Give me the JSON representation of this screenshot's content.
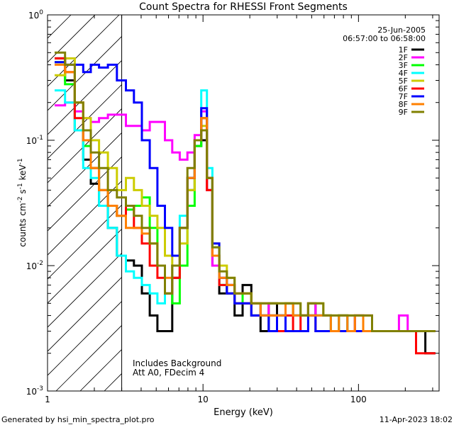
{
  "chart_data": {
    "type": "line",
    "title": "Count Spectra for RHESSI Front Segments",
    "xlabel": "Energy (keV)",
    "ylabel_base": "counts cm",
    "ylabel_sup1": "-2",
    "ylabel_mid": " s",
    "ylabel_sup2": "-1",
    "ylabel_end": " keV",
    "ylabel_sup3": "-1",
    "xscale": "log",
    "yscale": "log",
    "xlim": [
      1.0,
      330
    ],
    "ylim": [
      0.001,
      1.0
    ],
    "x_ticks": [
      {
        "value": 1,
        "label": "1"
      },
      {
        "value": 10,
        "label": "10"
      },
      {
        "value": 100,
        "label": "100"
      }
    ],
    "y_ticks": [
      {
        "value": 0.001,
        "base": "10",
        "exp": "-3"
      },
      {
        "value": 0.01,
        "base": "10",
        "exp": "-2"
      },
      {
        "value": 0.1,
        "base": "10",
        "exp": "-1"
      },
      {
        "value": 1.0,
        "base": "10",
        "exp": "0"
      }
    ],
    "hatch_region": {
      "x_min": 1.0,
      "x_max": 3.0
    },
    "date": "25-Jun-2005",
    "time_range": "06:57:00 to 06:58:00",
    "notes": [
      "Includes Background",
      "Att A0, FDecim 4"
    ],
    "energies": [
      1.2,
      1.4,
      1.6,
      1.8,
      2.0,
      2.3,
      2.6,
      3.0,
      3.4,
      3.8,
      4.3,
      4.8,
      5.4,
      6.0,
      6.7,
      7.5,
      8.4,
      9.3,
      10.2,
      11.0,
      12.0,
      13.5,
      15,
      17,
      19,
      22,
      25,
      28,
      32,
      36,
      40,
      45,
      50,
      56,
      63,
      70,
      80,
      90,
      100,
      115,
      130,
      150,
      170,
      195,
      220,
      250,
      290
    ],
    "series": [
      {
        "name": "1F",
        "color": "#000000",
        "values": [
          0.45,
          0.3,
          0.12,
          0.07,
          0.045,
          0.03,
          0.02,
          0.012,
          0.011,
          0.01,
          0.006,
          0.004,
          0.003,
          0.003,
          0.008,
          0.02,
          0.04,
          0.09,
          0.1,
          0.04,
          0.01,
          0.006,
          0.007,
          0.004,
          0.007,
          0.005,
          0.003,
          0.005,
          0.004,
          0.005,
          0.004,
          0.004,
          0.005,
          0.004,
          0.004,
          0.003,
          0.004,
          0.003,
          0.004,
          0.003,
          0.003,
          0.003,
          0.003,
          0.003,
          0.003,
          0.003,
          0.002
        ]
      },
      {
        "name": "2F",
        "color": "#ff00ff",
        "values": [
          0.19,
          0.2,
          0.17,
          0.15,
          0.14,
          0.15,
          0.16,
          0.16,
          0.13,
          0.13,
          0.12,
          0.14,
          0.14,
          0.1,
          0.08,
          0.07,
          0.08,
          0.11,
          0.17,
          0.04,
          0.01,
          0.008,
          0.007,
          0.006,
          0.005,
          0.005,
          0.005,
          0.004,
          0.004,
          0.005,
          0.004,
          0.004,
          0.005,
          0.004,
          0.004,
          0.003,
          0.004,
          0.003,
          0.004,
          0.004,
          0.003,
          0.003,
          0.003,
          0.004,
          0.003,
          0.003,
          0.003
        ]
      },
      {
        "name": "3F",
        "color": "#00ff00",
        "values": [
          0.42,
          0.28,
          0.12,
          0.09,
          0.06,
          0.04,
          0.03,
          0.025,
          0.028,
          0.03,
          0.035,
          0.02,
          0.01,
          0.006,
          0.005,
          0.01,
          0.03,
          0.09,
          0.15,
          0.05,
          0.012,
          0.007,
          0.006,
          0.005,
          0.006,
          0.004,
          0.004,
          0.004,
          0.004,
          0.005,
          0.004,
          0.004,
          0.004,
          0.004,
          0.004,
          0.003,
          0.004,
          0.003,
          0.003,
          0.003,
          0.003,
          0.003,
          0.003,
          0.003,
          0.003,
          0.003,
          0.003
        ]
      },
      {
        "name": "4F",
        "color": "#00ffff",
        "values": [
          0.25,
          0.2,
          0.12,
          0.06,
          0.05,
          0.03,
          0.02,
          0.012,
          0.009,
          0.008,
          0.007,
          0.006,
          0.005,
          0.006,
          0.01,
          0.025,
          0.05,
          0.1,
          0.25,
          0.06,
          0.014,
          0.007,
          0.006,
          0.005,
          0.005,
          0.004,
          0.004,
          0.004,
          0.004,
          0.004,
          0.004,
          0.004,
          0.004,
          0.004,
          0.004,
          0.003,
          0.004,
          0.003,
          0.003,
          0.003,
          0.003,
          0.003,
          0.003,
          0.003,
          0.003,
          0.003,
          0.003
        ]
      },
      {
        "name": "5F",
        "color": "#cccc00",
        "values": [
          0.33,
          0.45,
          0.2,
          0.15,
          0.1,
          0.08,
          0.06,
          0.04,
          0.05,
          0.04,
          0.03,
          0.025,
          0.02,
          0.012,
          0.01,
          0.015,
          0.04,
          0.1,
          0.13,
          0.05,
          0.015,
          0.01,
          0.008,
          0.006,
          0.006,
          0.005,
          0.005,
          0.005,
          0.005,
          0.005,
          0.005,
          0.004,
          0.005,
          0.005,
          0.004,
          0.004,
          0.004,
          0.004,
          0.004,
          0.004,
          0.003,
          0.003,
          0.003,
          0.003,
          0.003,
          0.003,
          0.003
        ]
      },
      {
        "name": "6F",
        "color": "#ff0000",
        "values": [
          0.45,
          0.35,
          0.15,
          0.1,
          0.06,
          0.04,
          0.03,
          0.025,
          0.03,
          0.02,
          0.015,
          0.01,
          0.008,
          0.006,
          0.008,
          0.02,
          0.05,
          0.1,
          0.15,
          0.04,
          0.012,
          0.007,
          0.006,
          0.005,
          0.005,
          0.004,
          0.004,
          0.004,
          0.003,
          0.004,
          0.003,
          0.004,
          0.004,
          0.003,
          0.003,
          0.003,
          0.003,
          0.003,
          0.003,
          0.003,
          0.003,
          0.003,
          0.003,
          0.003,
          0.003,
          0.002,
          0.002
        ]
      },
      {
        "name": "7F",
        "color": "#0000ff",
        "values": [
          0.42,
          0.4,
          0.4,
          0.35,
          0.4,
          0.38,
          0.4,
          0.3,
          0.25,
          0.2,
          0.1,
          0.06,
          0.03,
          0.02,
          0.012,
          0.02,
          0.05,
          0.1,
          0.18,
          0.05,
          0.015,
          0.008,
          0.006,
          0.005,
          0.005,
          0.004,
          0.004,
          0.003,
          0.004,
          0.003,
          0.003,
          0.003,
          0.004,
          0.003,
          0.003,
          0.003,
          0.003,
          0.003,
          0.003,
          0.003,
          0.003,
          0.003,
          0.003,
          0.003,
          0.003,
          0.003,
          0.003
        ]
      },
      {
        "name": "8F",
        "color": "#ff8000",
        "values": [
          0.4,
          0.35,
          0.2,
          0.1,
          0.06,
          0.04,
          0.03,
          0.025,
          0.02,
          0.02,
          0.018,
          0.015,
          0.01,
          0.008,
          0.01,
          0.02,
          0.05,
          0.1,
          0.15,
          0.05,
          0.012,
          0.008,
          0.007,
          0.006,
          0.006,
          0.005,
          0.004,
          0.004,
          0.004,
          0.005,
          0.004,
          0.004,
          0.004,
          0.004,
          0.004,
          0.003,
          0.004,
          0.003,
          0.004,
          0.003,
          0.003,
          0.003,
          0.003,
          0.003,
          0.003,
          0.003,
          0.003
        ]
      },
      {
        "name": "9F",
        "color": "#808000",
        "values": [
          0.5,
          0.4,
          0.2,
          0.12,
          0.08,
          0.06,
          0.04,
          0.035,
          0.03,
          0.025,
          0.02,
          0.015,
          0.01,
          0.006,
          0.01,
          0.02,
          0.06,
          0.1,
          0.12,
          0.05,
          0.014,
          0.009,
          0.008,
          0.006,
          0.006,
          0.005,
          0.005,
          0.005,
          0.005,
          0.005,
          0.005,
          0.004,
          0.005,
          0.005,
          0.004,
          0.004,
          0.004,
          0.004,
          0.004,
          0.004,
          0.003,
          0.003,
          0.003,
          0.003,
          0.003,
          0.003,
          0.003
        ]
      }
    ]
  },
  "footer": {
    "left": "Generated by hsi_min_spectra_plot.pro",
    "right": "11-Apr-2023 18:02"
  }
}
